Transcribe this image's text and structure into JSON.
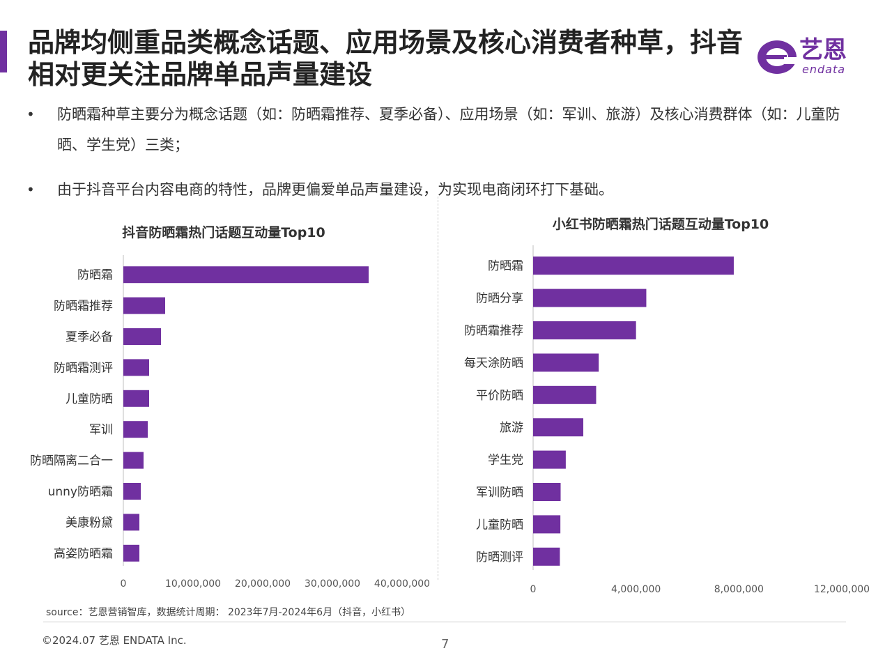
{
  "header": {
    "title": "品牌均侧重品类概念话题、应用场景及核心消费者种草，抖音相对更关注品牌单品声量建设",
    "accent_color": "#7030a0"
  },
  "logo": {
    "cn": "艺恩",
    "en": "endata"
  },
  "bullets": [
    "防晒霜种草主要分为概念话题（如：防晒霜推荐、夏季必备）、应用场景（如：军训、旅游）及核心消费群体（如：儿童防晒、学生党）三类；",
    "由于抖音平台内容电商的特性，品牌更偏爱单品声量建设，为实现电商闭环打下基础。"
  ],
  "chart_data": [
    {
      "type": "bar",
      "orientation": "horizontal",
      "title": "抖音防晒霜热门话题互动量Top10",
      "categories": [
        "防晒霜",
        "防晒霜推荐",
        "夏季必备",
        "防晒霜测评",
        "儿童防晒",
        "军训",
        "防晒隔离二合一",
        "unny防晒霜",
        "美康粉黛",
        "高姿防晒霜"
      ],
      "values": [
        35200000,
        6000000,
        5400000,
        3700000,
        3700000,
        3500000,
        2900000,
        2500000,
        2300000,
        2300000
      ],
      "xlim": [
        0,
        40000000
      ],
      "xticks": [
        0,
        10000000,
        20000000,
        30000000,
        40000000
      ],
      "xtick_labels": [
        "0",
        "10,000,000",
        "20,000,000",
        "30,000,000",
        "40,000,000"
      ],
      "color": "#7030a0",
      "grid": false
    },
    {
      "type": "bar",
      "orientation": "horizontal",
      "title": "小红书防晒霜热门话题互动量Top10",
      "categories": [
        "防晒霜",
        "防晒分享",
        "防晒霜推荐",
        "每天涂防晒",
        "平价防晒",
        "旅游",
        "学生党",
        "军训防晒",
        "儿童防晒",
        "防晒测评"
      ],
      "values": [
        7800000,
        4400000,
        4000000,
        2550000,
        2450000,
        1950000,
        1270000,
        1070000,
        1060000,
        1040000
      ],
      "xlim": [
        0,
        12000000
      ],
      "xticks": [
        0,
        4000000,
        8000000,
        12000000
      ],
      "xtick_labels": [
        "0",
        "4,000,000",
        "8,000,000",
        "12,000,000"
      ],
      "color": "#7030a0",
      "grid": false
    }
  ],
  "source": "source：艺恩营销智库，数据统计周期： 2023年7月-2024年6月（抖音，小红书）",
  "footer": {
    "copyright": "©2024.07  艺恩 ENDATA Inc.",
    "page_number": "7"
  }
}
